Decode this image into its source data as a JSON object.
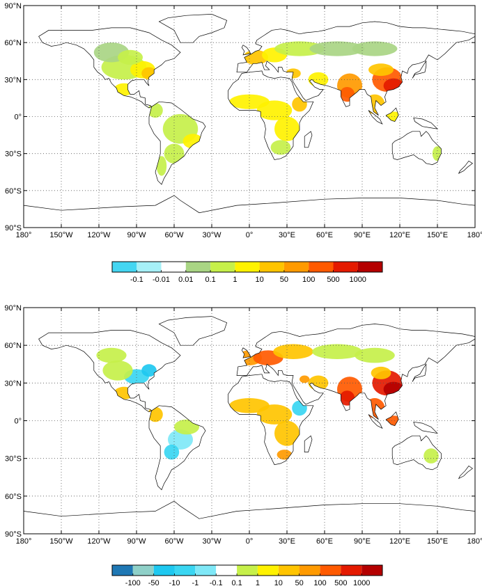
{
  "maps": [
    {
      "id": "top",
      "lat_labels": [
        "90°N",
        "60°N",
        "30°N",
        "0°",
        "30°S",
        "60°S",
        "90°S"
      ],
      "lon_labels": [
        "180°",
        "150°W",
        "120°W",
        "90°W",
        "60°W",
        "30°W",
        "0°",
        "30°E",
        "60°E",
        "90°E",
        "120°E",
        "150°E",
        "180°"
      ],
      "colorbar": {
        "labels": [
          "-0.1",
          "-0.01",
          "0.01",
          "0.1",
          "1",
          "10",
          "50",
          "100",
          "500",
          "1000"
        ],
        "colors": [
          "#44d6f2",
          "#a6f0f7",
          "#ffffff",
          "#a9d584",
          "#c6f04a",
          "#fff200",
          "#ffc400",
          "#ff9a00",
          "#ff5a00",
          "#e41a00",
          "#b40000"
        ]
      }
    },
    {
      "id": "bottom",
      "lat_labels": [
        "90°N",
        "60°N",
        "30°N",
        "0°",
        "30°S",
        "60°S",
        "90°S"
      ],
      "lon_labels": [
        "180°",
        "150°W",
        "120°W",
        "90°W",
        "60°W",
        "30°W",
        "0°",
        "30°E",
        "60°E",
        "90°E",
        "120°E",
        "150°E",
        "180°"
      ],
      "colorbar": {
        "labels": [
          "-100",
          "-50",
          "-10",
          "-1",
          "-0.1",
          "0.1",
          "1",
          "10",
          "50",
          "100",
          "500",
          "1000"
        ],
        "colors": [
          "#1f78b4",
          "#8fd0c8",
          "#1ec8f0",
          "#3ad6f2",
          "#7fe8f7",
          "#ffffff",
          "#c6f04a",
          "#fff200",
          "#ffc400",
          "#ff9a00",
          "#ff5a00",
          "#e41a00",
          "#b40000"
        ]
      }
    }
  ]
}
